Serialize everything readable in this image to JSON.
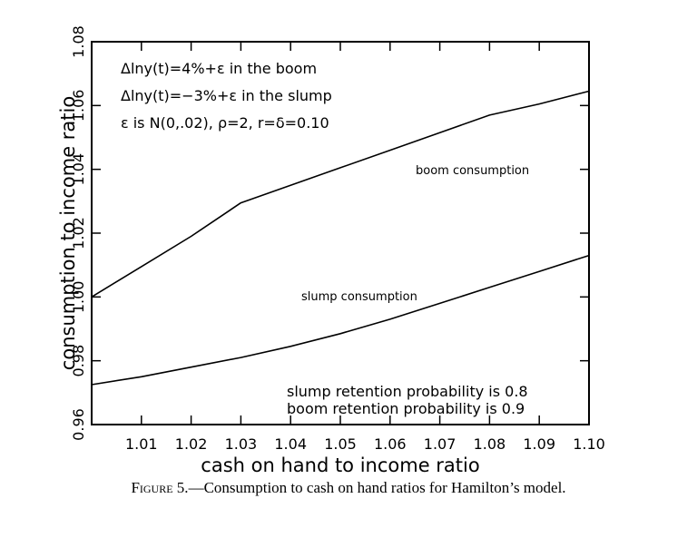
{
  "chart_data": {
    "type": "line",
    "xlabel": "cash on hand to income ratio",
    "ylabel": "consumption to income ratio",
    "xlim": [
      1.0,
      1.1
    ],
    "ylim": [
      0.96,
      1.08
    ],
    "x_ticks": [
      "1.01",
      "1.02",
      "1.03",
      "1.04",
      "1.05",
      "1.06",
      "1.07",
      "1.08",
      "1.09",
      "1.10"
    ],
    "y_ticks": [
      "0.96",
      "0.98",
      "1.00",
      "1.02",
      "1.04",
      "1.06",
      "1.08"
    ],
    "grid": false,
    "series": [
      {
        "name": "boom consumption",
        "x": [
          1.0,
          1.01,
          1.02,
          1.03,
          1.04,
          1.05,
          1.06,
          1.07,
          1.08,
          1.09,
          1.1
        ],
        "y": [
          1.0,
          1.0095,
          1.019,
          1.0295,
          1.035,
          1.0405,
          1.046,
          1.0515,
          1.057,
          1.0605,
          1.0645
        ]
      },
      {
        "name": "slump consumption",
        "x": [
          1.0,
          1.01,
          1.02,
          1.03,
          1.04,
          1.05,
          1.06,
          1.07,
          1.08,
          1.09,
          1.1
        ],
        "y": [
          0.9725,
          0.975,
          0.978,
          0.981,
          0.9845,
          0.9885,
          0.993,
          0.998,
          1.003,
          1.008,
          1.013
        ]
      }
    ],
    "annotations": {
      "line1": "Δlny(t)=4%+ε in the boom",
      "line2": "Δlny(t)=−3%+ε in the slump",
      "line3": "ε is N(0,.02), ρ=2, r=δ=0.10",
      "boom_label": "boom consumption",
      "slump_label": "slump consumption",
      "retention1": "slump retention probability is 0.8",
      "retention2": "boom retention probability is 0.9"
    }
  },
  "caption": {
    "figure_label": "Figure 5.",
    "text": "—Consumption to cash on hand ratios for Hamilton’s model."
  }
}
